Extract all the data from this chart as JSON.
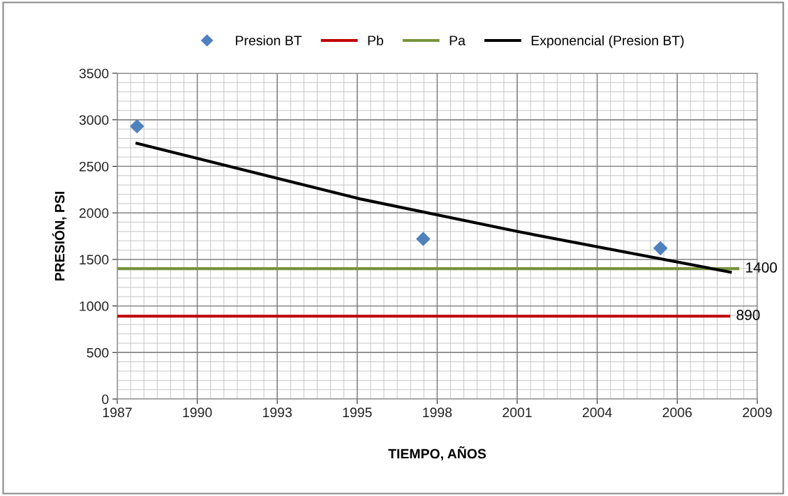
{
  "chart_data": {
    "type": "scatter",
    "xlabel": "TIEMPO, AÑOS",
    "ylabel": "PRESIÓN, PSI",
    "xlim": [
      "1987-09-01",
      "2009-07-29"
    ],
    "ylim": [
      0,
      3500
    ],
    "xticks": [
      {
        "value": "1987-09-01",
        "label": "1987"
      },
      {
        "value": "1990-05-28",
        "label": "1990"
      },
      {
        "value": "1993-02-21",
        "label": "1993"
      },
      {
        "value": "1995-11-18",
        "label": "1995"
      },
      {
        "value": "1998-08-14",
        "label": "1998"
      },
      {
        "value": "2001-05-10",
        "label": "2001"
      },
      {
        "value": "2004-02-04",
        "label": "2004"
      },
      {
        "value": "2006-11-01",
        "label": "2006"
      },
      {
        "value": "2009-07-29",
        "label": "2009"
      }
    ],
    "yticks": [
      0,
      500,
      1000,
      1500,
      2000,
      2500,
      3000,
      3500
    ],
    "grid": true,
    "legend": "top",
    "series": [
      {
        "name": "Presion BT",
        "marker": "diamond",
        "color": "#4f81bd",
        "x": [
          "1988-05-05",
          "1998-02-20",
          "2006-04-05"
        ],
        "values": [
          2930,
          1720,
          1620
        ]
      },
      {
        "name": "Pb",
        "type": "line",
        "color": "#c00000",
        "x": [
          "1987-09-01",
          "2008-08-25"
        ],
        "values": [
          890,
          890
        ],
        "value_labels": [
          null,
          "890"
        ]
      },
      {
        "name": "Pa",
        "type": "line",
        "color": "#77933c",
        "x": [
          "1987-09-01",
          "2008-12-16"
        ],
        "values": [
          1400,
          1400
        ],
        "value_labels": [
          null,
          "1400"
        ]
      },
      {
        "name": "Exponencial (Presion BT)",
        "type": "line",
        "color": "#000000",
        "x": [
          "1988-04-17",
          "1995-12-24",
          "2001-05-12",
          "2008-09-13"
        ],
        "values": [
          2750,
          2150,
          1800,
          1360
        ]
      }
    ]
  }
}
